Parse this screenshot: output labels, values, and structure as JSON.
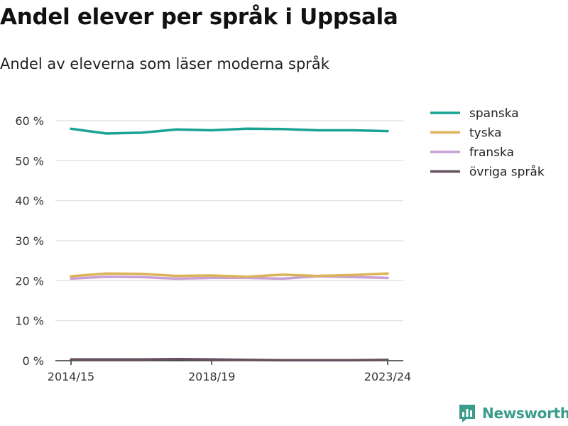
{
  "header": {
    "title": "Andel elever per språk i Uppsala",
    "subtitle": "Andel av eleverna som läser moderna språk"
  },
  "branding": {
    "name": "Newsworthy",
    "logo_icon": "bar-chart-speech-bubble-icon",
    "color": "#3a9c8c"
  },
  "chart_data": {
    "type": "line",
    "title": "Andel elever per språk i Uppsala",
    "subtitle": "Andel av eleverna som läser moderna språk",
    "xlabel": "",
    "ylabel": "",
    "x": [
      "2014/15",
      "2015/16",
      "2016/17",
      "2017/18",
      "2018/19",
      "2019/20",
      "2020/21",
      "2021/22",
      "2022/23",
      "2023/24"
    ],
    "x_tick_labels": [
      "2014/15",
      "2018/19",
      "2023/24"
    ],
    "y_ticks": [
      0,
      10,
      20,
      30,
      40,
      50,
      60
    ],
    "y_tick_suffix": " %",
    "ylim": [
      0,
      60
    ],
    "grid": true,
    "legend_position": "right",
    "series": [
      {
        "name": "spanska",
        "color": "#1aa392",
        "values": [
          58.0,
          56.8,
          57.0,
          57.8,
          57.6,
          58.0,
          57.9,
          57.6,
          57.6,
          57.4
        ]
      },
      {
        "name": "tyska",
        "color": "#dbb359",
        "values": [
          21.1,
          21.8,
          21.7,
          21.2,
          21.3,
          21.0,
          21.5,
          21.2,
          21.4,
          21.8
        ]
      },
      {
        "name": "franska",
        "color": "#c9a0d6",
        "values": [
          20.5,
          21.0,
          20.9,
          20.5,
          20.7,
          20.7,
          20.5,
          21.1,
          20.9,
          20.7
        ]
      },
      {
        "name": "övriga språk",
        "color": "#66505f",
        "values": [
          0.3,
          0.3,
          0.3,
          0.4,
          0.3,
          0.2,
          0.1,
          0.1,
          0.1,
          0.2
        ]
      }
    ]
  }
}
